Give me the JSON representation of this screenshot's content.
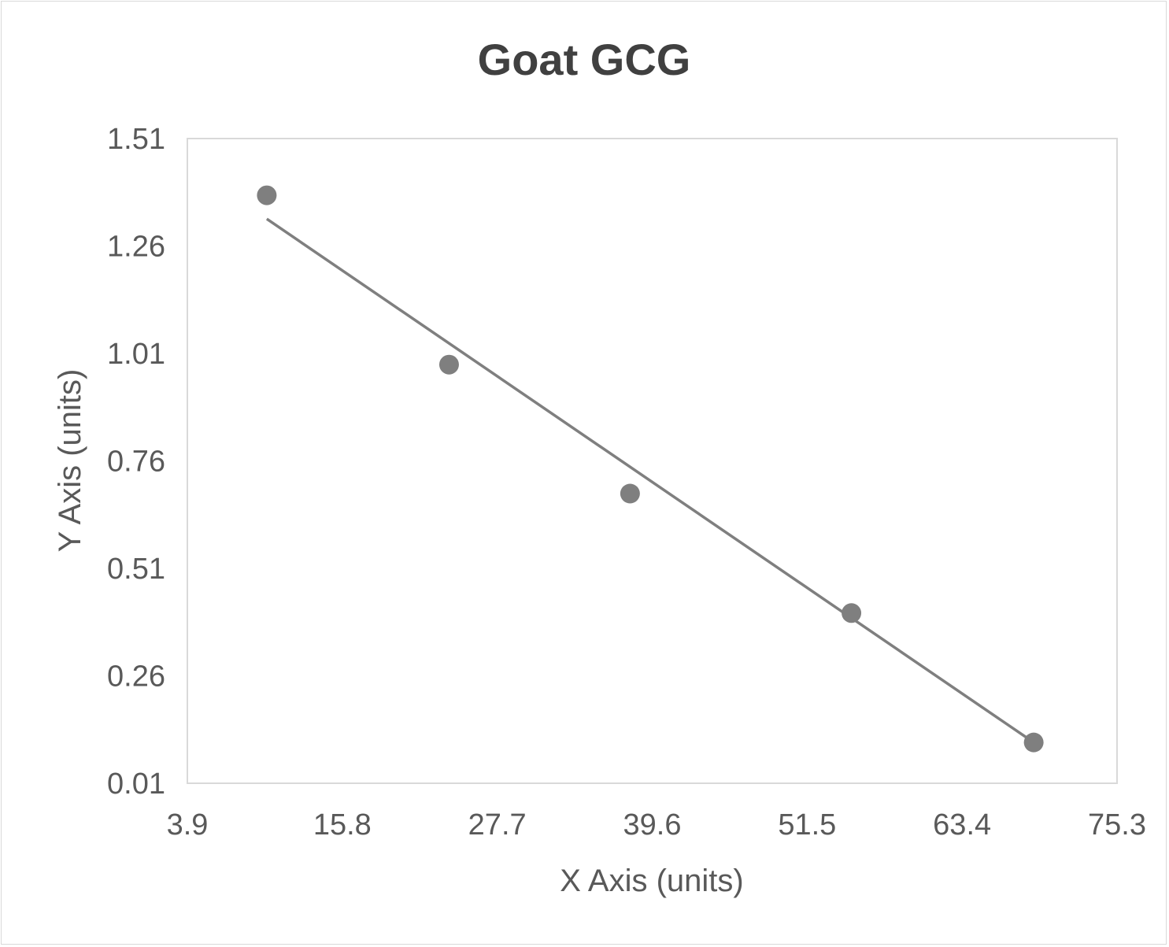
{
  "chart_data": {
    "type": "scatter",
    "title": "Goat GCG",
    "xlabel": "X Axis (units)",
    "ylabel": "Y Axis (units)",
    "xlim": [
      3.9,
      75.3
    ],
    "ylim": [
      0.01,
      1.51
    ],
    "xticks": [
      "3.9",
      "15.8",
      "27.7",
      "39.6",
      "51.5",
      "63.4",
      "75.3"
    ],
    "yticks": [
      "0.01",
      "0.26",
      "0.51",
      "0.76",
      "1.01",
      "1.26",
      "1.51"
    ],
    "grid": false,
    "legend": "none",
    "series": [
      {
        "x": [
          10.0,
          24.0,
          37.9,
          54.9,
          68.9
        ],
        "y": [
          1.378,
          0.984,
          0.684,
          0.406,
          0.105
        ],
        "color": "#7f7f7f"
      }
    ],
    "trendline": {
      "type": "linear",
      "x": [
        10.0,
        68.9
      ],
      "y": [
        1.323,
        0.105
      ],
      "color": "#7f7f7f"
    }
  }
}
